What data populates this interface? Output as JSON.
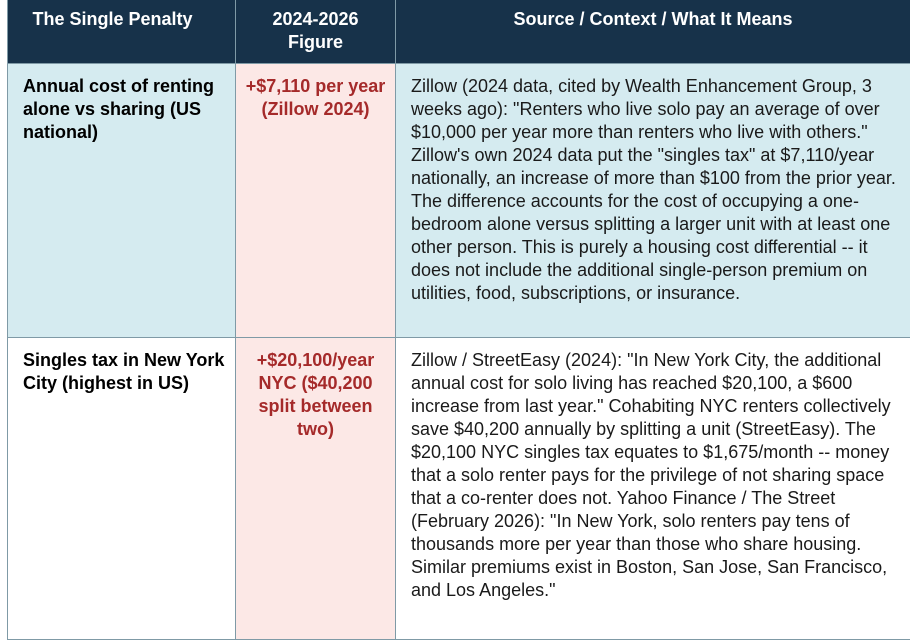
{
  "table": {
    "headers": [
      "The Single Penalty",
      "2024-2026 Figure",
      "Source / Context / What It Means"
    ],
    "rows": [
      {
        "label": "Annual cost of renting alone vs sharing (US national)",
        "figure": "+$7,110 per year (Zillow 2024)",
        "context": "Zillow (2024 data, cited by Wealth Enhancement Group, 3 weeks ago): \"Renters who live solo pay an average of over $10,000 per year more than renters who live with others.\" Zillow's own 2024 data put the \"singles tax\" at $7,110/year nationally, an increase of more than $100 from the prior year. The difference accounts for the cost of occupying a one-bedroom alone versus splitting a larger unit with at least one other person. This is purely a housing cost differential -- it does not include the additional single-person premium on utilities, food, subscriptions, or insurance."
      },
      {
        "label": "Singles tax in New York City (highest in US)",
        "figure": "+$20,100/year NYC ($40,200 split between two)",
        "context": "Zillow / StreetEasy (2024): \"In New York City, the additional annual cost for solo living has reached $20,100, a $600 increase from last year.\" Cohabiting NYC renters collectively save $40,200 annually by splitting a unit (StreetEasy). The $20,100 NYC singles tax equates to $1,675/month -- money that a solo renter pays for the privilege of not sharing space that a co-renter does not. Yahoo Finance / The Street (February 2026): \"In New York, solo renters pay tens of thousands more per year than those who share housing. Similar premiums exist in Boston, San Jose, San Francisco, and Los Angeles.\""
      }
    ]
  }
}
